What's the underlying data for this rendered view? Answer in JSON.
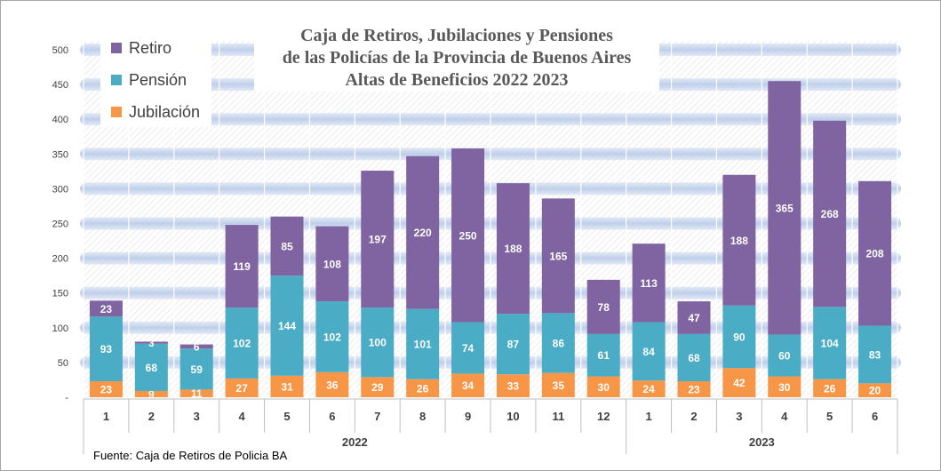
{
  "title_lines": [
    "Caja de Retiros, Jubilaciones y Pensiones",
    "de las Policías de la Provincia de Buenos Aires",
    "Altas de Beneficios 2022  2023"
  ],
  "source": "Fuente: Caja de Retiros de Policia BA",
  "colors": {
    "Jubilación": "#f79646",
    "Pensión": "#4bacc6",
    "Retiro": "#8064a2"
  },
  "chart_data": {
    "type": "bar",
    "stacked": true,
    "title": "Caja de Retiros, Jubilaciones y Pensiones de las Policías de la Provincia de Buenos Aires Altas de Beneficios 2022  2023",
    "categories": [
      "1",
      "2",
      "3",
      "4",
      "5",
      "6",
      "7",
      "8",
      "9",
      "10",
      "11",
      "12",
      "1",
      "2",
      "3",
      "4",
      "5",
      "6"
    ],
    "groups": [
      {
        "label": "2022",
        "count": 12
      },
      {
        "label": "2023",
        "count": 6
      }
    ],
    "series": [
      {
        "name": "Jubilación",
        "values": [
          23,
          9,
          11,
          27,
          31,
          36,
          29,
          26,
          34,
          33,
          35,
          30,
          24,
          23,
          42,
          30,
          26,
          20
        ]
      },
      {
        "name": "Pensión",
        "values": [
          93,
          68,
          59,
          102,
          144,
          102,
          100,
          101,
          74,
          87,
          86,
          61,
          84,
          68,
          90,
          60,
          104,
          83
        ]
      },
      {
        "name": "Retiro",
        "values": [
          23,
          3,
          6,
          119,
          85,
          108,
          197,
          220,
          250,
          188,
          165,
          78,
          113,
          47,
          188,
          365,
          268,
          208
        ]
      }
    ],
    "legend_order": [
      "Retiro",
      "Pensión",
      "Jubilación"
    ],
    "ylim": [
      0,
      500
    ],
    "yticks": [
      {
        "value": 0,
        "label": "-"
      },
      {
        "value": 50,
        "label": "50"
      },
      {
        "value": 100,
        "label": "100"
      },
      {
        "value": 150,
        "label": "150"
      },
      {
        "value": 200,
        "label": "200"
      },
      {
        "value": 250,
        "label": "250"
      },
      {
        "value": 300,
        "label": "300"
      },
      {
        "value": 350,
        "label": "350"
      },
      {
        "value": 400,
        "label": "400"
      },
      {
        "value": 450,
        "label": "450"
      },
      {
        "value": 500,
        "label": "500"
      }
    ],
    "grid": true,
    "legend_position": "top-left"
  }
}
